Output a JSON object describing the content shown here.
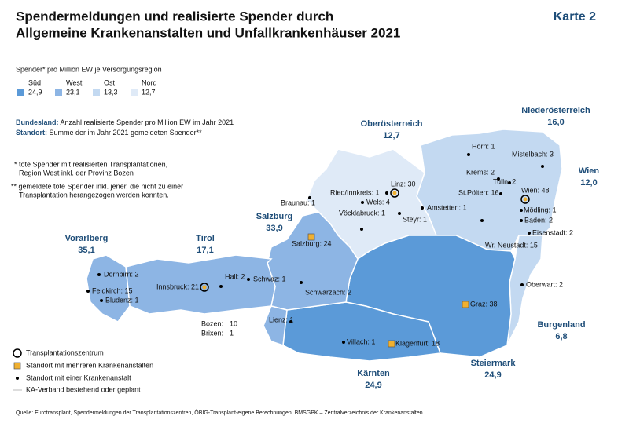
{
  "header": {
    "title_line1": "Spendermeldungen und realisierte Spender durch",
    "title_line2": "Allgemeine Krankenanstalten und Unfallkrankenhäuser 2021",
    "badge": "Karte 2"
  },
  "region_legend": {
    "caption": "Spender* pro Million EW je Versorgungsregion",
    "items": [
      {
        "name": "Süd",
        "value": "24,9",
        "color": "#5b9ad8"
      },
      {
        "name": "West",
        "value": "23,1",
        "color": "#8db5e4"
      },
      {
        "name": "Ost",
        "value": "13,3",
        "color": "#c3d9f1"
      },
      {
        "name": "Nord",
        "value": "12,7",
        "color": "#dfeaf7"
      }
    ]
  },
  "notes": {
    "bundesland_label": "Bundesland:",
    "bundesland_text": "Anzahl realisierte Spender pro Million EW im Jahr 2021",
    "standort_label": "Standort:",
    "standort_text": "Summe der im Jahr 2021 gemeldeten Spender**",
    "footnote1_line1": "* tote Spender mit realisierten Transplantationen,",
    "footnote1_line2": "Region West inkl. der Provinz Bozen",
    "footnote2_line1": "** gemeldete tote Spender inkl. jener, die nicht zu einer",
    "footnote2_line2": "Transplantation herangezogen werden konnten."
  },
  "states": [
    {
      "name": "Oberösterreich",
      "value": "12,7"
    },
    {
      "name": "Niederösterreich",
      "value": "16,0"
    },
    {
      "name": "Wien",
      "value": "12,0"
    },
    {
      "name": "Salzburg",
      "value": "33,9"
    },
    {
      "name": "Tirol",
      "value": "17,1"
    },
    {
      "name": "Vorarlberg",
      "value": "35,1"
    },
    {
      "name": "Burgenland",
      "value": "6,8"
    },
    {
      "name": "Steiermark",
      "value": "24,9"
    },
    {
      "name": "Kärnten",
      "value": "24,9"
    }
  ],
  "locations": [
    {
      "label": "Horn: 1",
      "kind": "single"
    },
    {
      "label": "Mistelbach: 3",
      "kind": "single"
    },
    {
      "label": "Krems: 2",
      "kind": "single"
    },
    {
      "label": "Tulln: 2",
      "kind": "single"
    },
    {
      "label": "Wien: 48",
      "kind": "center"
    },
    {
      "label": "St.Pölten: 16",
      "kind": "single"
    },
    {
      "label": "Amstetten: 1",
      "kind": "single"
    },
    {
      "label": "Mödling: 1",
      "kind": "single"
    },
    {
      "label": "Baden: 2",
      "kind": "single"
    },
    {
      "label": "Eisenstadt: 2",
      "kind": "single"
    },
    {
      "label": "Wr. Neustadt: 15",
      "kind": "single"
    },
    {
      "label": "Oberwart: 2",
      "kind": "single"
    },
    {
      "label": "Graz: 38",
      "kind": "multi"
    },
    {
      "label": "Klagenfurt: 18",
      "kind": "multi"
    },
    {
      "label": "Villach: 1",
      "kind": "single"
    },
    {
      "label": "Lienz: 1",
      "kind": "single"
    },
    {
      "label": "Schwarzach: 2",
      "kind": "single"
    },
    {
      "label": "Salzburg: 24",
      "kind": "multi"
    },
    {
      "label": "Hall: 2",
      "kind": "single"
    },
    {
      "label": "Schwaz: 1",
      "kind": "single"
    },
    {
      "label": "Innsbruck: 21",
      "kind": "center"
    },
    {
      "label": "Dornbirn: 2",
      "kind": "single"
    },
    {
      "label": "Feldkirch: 15",
      "kind": "single"
    },
    {
      "label": "Bludenz: 1",
      "kind": "single"
    },
    {
      "label": "Linz: 30",
      "kind": "center"
    },
    {
      "label": "Ried/Innkreis: 1",
      "kind": "single"
    },
    {
      "label": "Wels: 4",
      "kind": "single"
    },
    {
      "label": "Vöcklabruck: 1",
      "kind": "single"
    },
    {
      "label": "Steyr: 1",
      "kind": "single"
    },
    {
      "label": "Braunau: 1",
      "kind": "single"
    }
  ],
  "bozen": {
    "bozen_label": "Bozen:",
    "bozen_value": "10",
    "brixen_label": "Brixen:",
    "brixen_value": "1"
  },
  "symbol_legend": {
    "center": "Transplantationszentrum",
    "multi": "Standort mit mehreren Krankenanstalten",
    "single": "Standort mit einer Krankenanstalt",
    "line": "KA-Verband bestehend oder geplant"
  },
  "source": "Quelle: Eurotransplant, Spendermeldungen der Transplantationszentren, ÖBIG-Transplant-eigene Berechnungen, BMSGPK – Zentralverzeichnis der Krankenanstalten"
}
